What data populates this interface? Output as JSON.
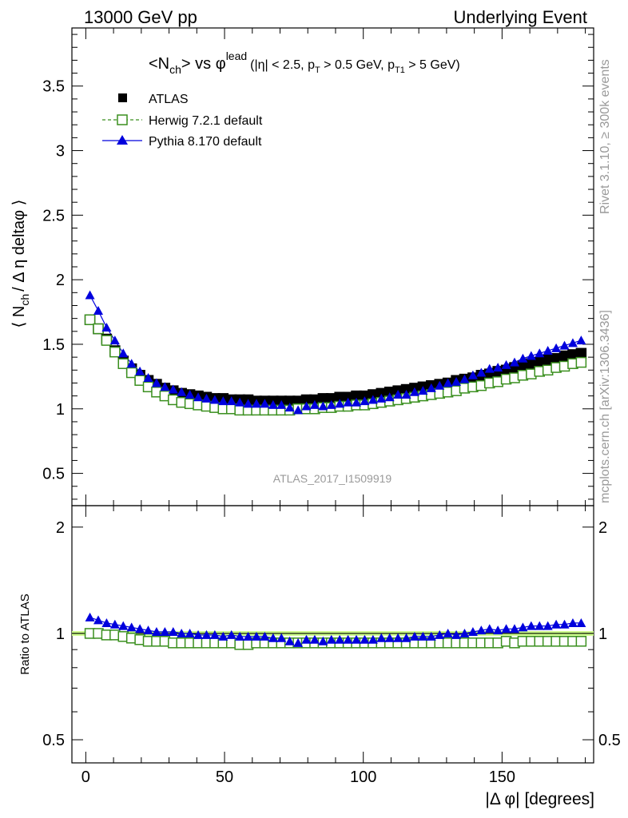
{
  "header": {
    "left": "13000 GeV pp",
    "right": "Underlying Event"
  },
  "side": {
    "rivet": "Rivet 3.1.10, ≥ 300k events",
    "mcplots": "mcplots.cern.ch [arXiv:1306.3436]"
  },
  "watermark": "ATLAS_2017_I1509919",
  "colors": {
    "atlas": "#000000",
    "herwig": "#3a8f1e",
    "pythia": "#0000dd",
    "band": "#ccff88"
  },
  "chart_data": [
    {
      "type": "scatter",
      "title_parts": {
        "main": "<N",
        "main_sub": "ch",
        "main_rest": "> vs φ",
        "main_sup": "lead",
        "cut_a": "(|η| < 2.5, p",
        "cut_a_sub": "T",
        "cut_b": " > 0.5 GeV, p",
        "cut_b_sub": "T1",
        "cut_c": " > 5 GeV)"
      },
      "ylabel_parts": {
        "a": "⟨ N",
        "sub": "ch",
        "b": "/ Δ η deltaφ ⟩"
      },
      "xlim": [
        -5,
        183
      ],
      "ylim": [
        0.25,
        3.95
      ],
      "yticks": [
        "0.5",
        "1",
        "1.5",
        "2",
        "2.5",
        "3",
        "3.5"
      ],
      "x": [
        1.5,
        4.5,
        7.5,
        10.5,
        13.5,
        16.5,
        19.5,
        22.5,
        25.5,
        28.5,
        31.5,
        34.5,
        37.5,
        40.5,
        43.5,
        46.5,
        49.5,
        52.5,
        55.5,
        58.5,
        61.5,
        64.5,
        67.5,
        70.5,
        73.5,
        76.5,
        79.5,
        82.5,
        85.5,
        88.5,
        91.5,
        94.5,
        97.5,
        100.5,
        103.5,
        106.5,
        109.5,
        112.5,
        115.5,
        118.5,
        121.5,
        124.5,
        127.5,
        130.5,
        133.5,
        136.5,
        139.5,
        142.5,
        145.5,
        148.5,
        151.5,
        154.5,
        157.5,
        160.5,
        163.5,
        166.5,
        169.5,
        172.5,
        175.5,
        178.5
      ],
      "legend": [
        "ATLAS",
        "Herwig 7.2.1 default",
        "Pythia 8.170 default"
      ],
      "legend_position": "top-left",
      "series": [
        {
          "name": "ATLAS",
          "marker": "filled-square",
          "values": [
            1.69,
            1.62,
            1.54,
            1.45,
            1.37,
            1.31,
            1.26,
            1.22,
            1.19,
            1.16,
            1.14,
            1.12,
            1.11,
            1.1,
            1.09,
            1.08,
            1.08,
            1.07,
            1.07,
            1.07,
            1.06,
            1.06,
            1.06,
            1.06,
            1.06,
            1.06,
            1.07,
            1.07,
            1.08,
            1.08,
            1.09,
            1.09,
            1.1,
            1.1,
            1.11,
            1.12,
            1.13,
            1.14,
            1.15,
            1.16,
            1.17,
            1.18,
            1.19,
            1.2,
            1.22,
            1.23,
            1.24,
            1.26,
            1.27,
            1.29,
            1.3,
            1.32,
            1.33,
            1.35,
            1.36,
            1.38,
            1.39,
            1.41,
            1.42,
            1.43
          ]
        },
        {
          "name": "Herwig 7.2.1 default",
          "marker": "open-square-dashed",
          "values": [
            1.69,
            1.62,
            1.53,
            1.44,
            1.35,
            1.28,
            1.22,
            1.17,
            1.13,
            1.1,
            1.07,
            1.05,
            1.04,
            1.03,
            1.02,
            1.01,
            1.0,
            1.0,
            0.99,
            0.99,
            0.99,
            0.99,
            0.99,
            0.99,
            0.99,
            1.0,
            1.0,
            1.0,
            1.01,
            1.01,
            1.02,
            1.02,
            1.03,
            1.03,
            1.04,
            1.05,
            1.06,
            1.07,
            1.08,
            1.09,
            1.1,
            1.11,
            1.12,
            1.13,
            1.14,
            1.16,
            1.17,
            1.18,
            1.2,
            1.21,
            1.23,
            1.24,
            1.26,
            1.27,
            1.29,
            1.3,
            1.32,
            1.33,
            1.35,
            1.36
          ]
        },
        {
          "name": "Pythia 8.170 default",
          "marker": "filled-triangle",
          "values": [
            1.88,
            1.76,
            1.63,
            1.53,
            1.43,
            1.35,
            1.29,
            1.24,
            1.2,
            1.17,
            1.15,
            1.13,
            1.11,
            1.09,
            1.08,
            1.07,
            1.06,
            1.06,
            1.05,
            1.04,
            1.04,
            1.04,
            1.03,
            1.03,
            1.01,
            0.99,
            1.02,
            1.03,
            1.02,
            1.03,
            1.04,
            1.05,
            1.05,
            1.06,
            1.07,
            1.08,
            1.09,
            1.11,
            1.11,
            1.13,
            1.14,
            1.16,
            1.18,
            1.2,
            1.21,
            1.23,
            1.26,
            1.28,
            1.31,
            1.32,
            1.34,
            1.36,
            1.39,
            1.41,
            1.43,
            1.45,
            1.47,
            1.49,
            1.51,
            1.53
          ]
        }
      ]
    },
    {
      "type": "scatter",
      "ylabel": "Ratio to ATLAS",
      "xlabel": "|Δ φ| [degrees]",
      "xlim": [
        -5,
        183
      ],
      "ylim": [
        0.43,
        2.3
      ],
      "ylog": true,
      "yticks": [
        "0.5",
        "1",
        "2"
      ],
      "xticks": [
        "0",
        "50",
        "100",
        "150"
      ],
      "reference_band": [
        0.985,
        1.015
      ],
      "series": [
        {
          "name": "Herwig 7.2.1 default",
          "values": [
            1.0,
            1.0,
            0.99,
            0.99,
            0.98,
            0.97,
            0.96,
            0.95,
            0.95,
            0.95,
            0.94,
            0.94,
            0.94,
            0.94,
            0.94,
            0.94,
            0.94,
            0.94,
            0.93,
            0.93,
            0.94,
            0.94,
            0.94,
            0.94,
            0.94,
            0.94,
            0.94,
            0.94,
            0.94,
            0.94,
            0.94,
            0.94,
            0.94,
            0.94,
            0.94,
            0.94,
            0.94,
            0.94,
            0.94,
            0.94,
            0.94,
            0.94,
            0.94,
            0.94,
            0.94,
            0.94,
            0.94,
            0.94,
            0.94,
            0.94,
            0.95,
            0.94,
            0.95,
            0.95,
            0.95,
            0.95,
            0.95,
            0.95,
            0.95,
            0.95
          ]
        },
        {
          "name": "Pythia 8.170 default",
          "values": [
            1.11,
            1.09,
            1.07,
            1.06,
            1.05,
            1.04,
            1.03,
            1.02,
            1.01,
            1.01,
            1.01,
            1.0,
            1.0,
            0.99,
            0.99,
            0.99,
            0.98,
            0.99,
            0.98,
            0.98,
            0.98,
            0.98,
            0.97,
            0.97,
            0.95,
            0.94,
            0.96,
            0.96,
            0.95,
            0.96,
            0.96,
            0.96,
            0.96,
            0.96,
            0.96,
            0.97,
            0.97,
            0.97,
            0.97,
            0.98,
            0.98,
            0.98,
            0.99,
            1.0,
            0.99,
            1.0,
            1.01,
            1.02,
            1.03,
            1.02,
            1.03,
            1.03,
            1.04,
            1.05,
            1.05,
            1.05,
            1.06,
            1.06,
            1.07,
            1.07
          ]
        }
      ]
    }
  ]
}
